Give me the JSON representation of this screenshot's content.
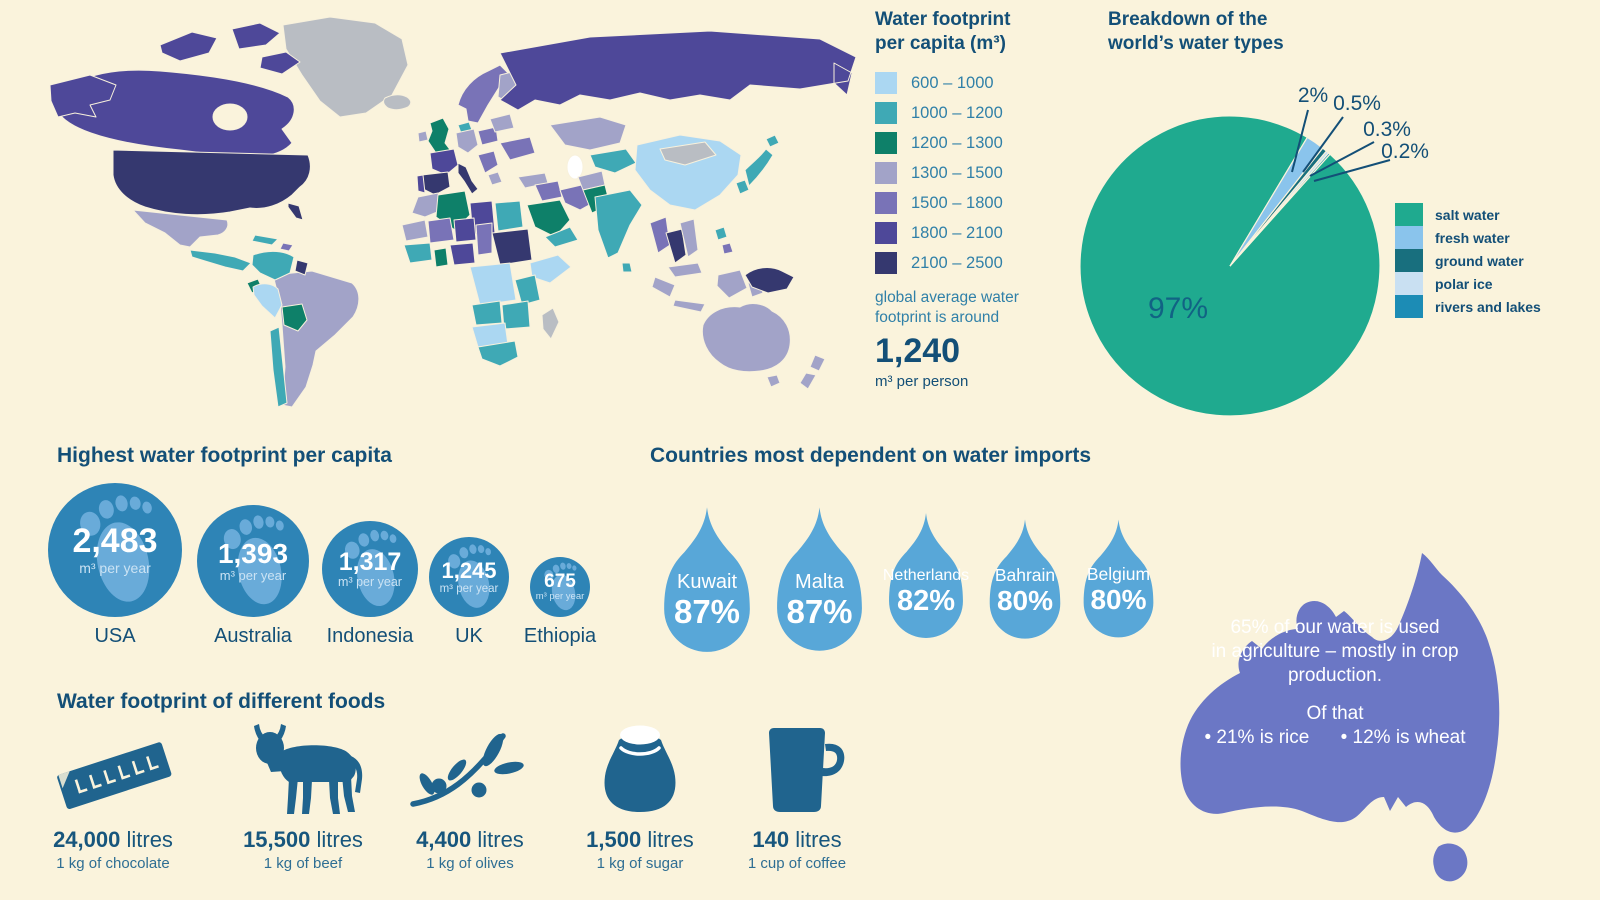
{
  "palette": {
    "background": "#FAF3DC",
    "heading_text": "#134F77",
    "legend_text": "#3080A8",
    "no_data": "#B9BDC3",
    "footprint_circle": "#2E84B6",
    "footprint_foot": "#69ABD9",
    "water_drop": "#58A7D8",
    "australia_fill": "#6B77C5",
    "food_icon": "#20648E"
  },
  "chart_data": [
    {
      "id": "water-footprint-choropleth",
      "type": "heatmap",
      "subtype": "choropleth-world-map",
      "title": "Water footprint per capita (m³)",
      "title_lines": [
        "Water footprint",
        "per capita (m³)"
      ],
      "legend_position": "right-of-map",
      "bins": [
        {
          "range": "600 – 1000",
          "color": "#ABD7F2"
        },
        {
          "range": "1000 – 1200",
          "color": "#3FA9B5"
        },
        {
          "range": "1200 – 1300",
          "color": "#0E8069"
        },
        {
          "range": "1300 – 1500",
          "color": "#A2A3C8"
        },
        {
          "range": "1500 – 1800",
          "color": "#7973B7"
        },
        {
          "range": "1800 – 2100",
          "color": "#4E4899"
        },
        {
          "range": "2100 – 2500",
          "color": "#35386F"
        }
      ],
      "note_lines": [
        "global average water",
        "footprint is around"
      ],
      "average_value": "1,240",
      "average_unit": "m³ per person"
    },
    {
      "id": "world-water-types",
      "type": "pie",
      "title_lines": [
        "Breakdown of the",
        "world’s water types"
      ],
      "rotation_deg": 31,
      "legend_position": "right",
      "slices": [
        {
          "label": "salt water",
          "value": 97,
          "display": "97%",
          "color": "#1FAA8F"
        },
        {
          "label": "fresh water",
          "value": 2,
          "display": "2%",
          "color": "#8AC4EC"
        },
        {
          "label": "ground water",
          "value": 0.5,
          "display": "0.5%",
          "color": "#186F7E"
        },
        {
          "label": "polar ice",
          "value": 0.3,
          "display": "0.3%",
          "color": "#C9E0F2"
        },
        {
          "label": "rivers and lakes",
          "value": 0.2,
          "display": "0.2%",
          "color": "#1C8CB5"
        }
      ]
    },
    {
      "id": "highest-water-footprint",
      "type": "bar",
      "subtype": "proportional-circles",
      "title": "Highest water footprint per capita",
      "unit": "m³ per year",
      "items": [
        {
          "label": "USA",
          "value": 2483,
          "display": "2,483"
        },
        {
          "label": "Australia",
          "value": 1393,
          "display": "1,393"
        },
        {
          "label": "Indonesia",
          "value": 1317,
          "display": "1,317"
        },
        {
          "label": "UK",
          "value": 1245,
          "display": "1,245"
        },
        {
          "label": "Ethiopia",
          "value": 675,
          "display": "675"
        }
      ]
    },
    {
      "id": "water-import-dependence",
      "type": "bar",
      "subtype": "water-drop-pictogram",
      "title": "Countries most dependent on water imports",
      "items": [
        {
          "label": "Kuwait",
          "value": 87,
          "display": "87%"
        },
        {
          "label": "Malta",
          "value": 87,
          "display": "87%"
        },
        {
          "label": "Netherlands",
          "value": 82,
          "display": "82%"
        },
        {
          "label": "Bahrain",
          "value": 80,
          "display": "80%"
        },
        {
          "label": "Belgium",
          "value": 80,
          "display": "80%"
        }
      ]
    },
    {
      "id": "food-water-footprint",
      "type": "bar",
      "subtype": "pictogram",
      "title": "Water footprint of different foods",
      "unit": "litres",
      "items": [
        {
          "label": "1 kg of chocolate",
          "value": 24000,
          "display": "24,000",
          "icon": "chocolate-bar-icon"
        },
        {
          "label": "1 kg of beef",
          "value": 15500,
          "display": "15,500",
          "icon": "cow-icon"
        },
        {
          "label": "1 kg of olives",
          "value": 4400,
          "display": "4,400",
          "icon": "olive-branch-icon"
        },
        {
          "label": "1 kg of sugar",
          "value": 1500,
          "display": "1,500",
          "icon": "sugar-sack-icon"
        },
        {
          "label": "1 cup of coffee",
          "value": 140,
          "display": "140",
          "icon": "coffee-mug-icon"
        }
      ]
    }
  ],
  "australia_callout": {
    "line1": "65% of our water is used",
    "line2": "in agriculture – mostly in crop",
    "line3": "production.",
    "of_that": "Of that",
    "bullet1": "• 21% is rice",
    "bullet2": "• 12% is wheat"
  }
}
